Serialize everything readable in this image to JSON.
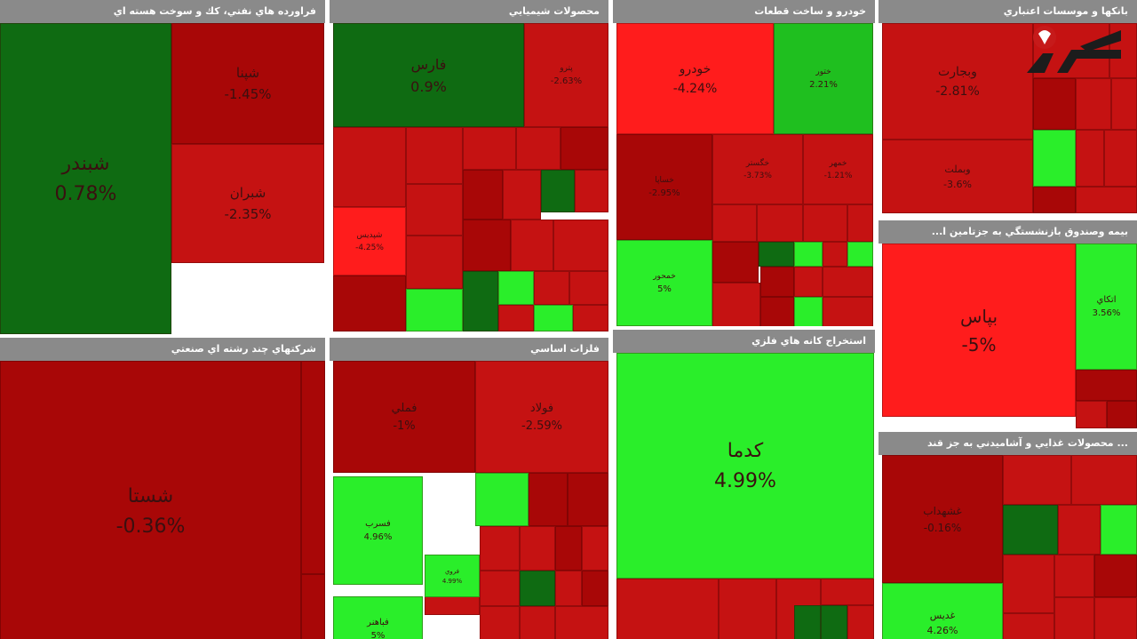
{
  "colors": {
    "dark_red": "#a80707",
    "red": "#c51212",
    "bright_red": "#ff1c1c",
    "dark_green": "#0f6b12",
    "green": "#1fbf1f",
    "bright_green": "#2aee2a"
  },
  "logo": {
    "icon": "rokna-logo-icon"
  },
  "chart_data": {
    "type": "heatmap",
    "panels": [
      {
        "title": "فراورده هاي نفتي، كك و سوخت هسته اي",
        "tiles": [
          {
            "label": "شبندر",
            "value": "0.78%",
            "color": "dark_green"
          },
          {
            "label": "شپنا",
            "value": "-1.45%",
            "color": "dark_red"
          },
          {
            "label": "شبران",
            "value": "-2.35%",
            "color": "red"
          }
        ]
      },
      {
        "title": "محصولات شيميايي",
        "tiles": [
          {
            "label": "فارس",
            "value": "0.9%",
            "color": "dark_green"
          },
          {
            "label": "پترو",
            "value": "-2.63%",
            "color": "red"
          },
          {
            "label": "شپديس",
            "value": "-4.25%",
            "color": "bright_red"
          }
        ]
      },
      {
        "title": "خودرو و ساخت قطعات",
        "tiles": [
          {
            "label": "خودرو",
            "value": "-4.24%",
            "color": "bright_red"
          },
          {
            "label": "ختور",
            "value": "2.21%",
            "color": "green"
          },
          {
            "label": "خساپا",
            "value": "-2.95%",
            "color": "dark_red"
          },
          {
            "label": "خگستر",
            "value": "-3.73%",
            "color": "red"
          },
          {
            "label": "خمهر",
            "value": "-1.21%",
            "color": "red"
          },
          {
            "label": "خمحور",
            "value": "5%",
            "color": "bright_green"
          }
        ]
      },
      {
        "title": "بانكها و موسسات اعتباري",
        "tiles": [
          {
            "label": "وبجارت",
            "value": "-2.81%",
            "color": "red"
          },
          {
            "label": "وبملت",
            "value": "-3.6%",
            "color": "red"
          }
        ]
      },
      {
        "title": "بيمه وصندوق بازنشستگي به جزتامين ا...",
        "tiles": [
          {
            "label": "بپاس",
            "value": "-5%",
            "color": "bright_red"
          },
          {
            "label": "اتكاي",
            "value": "3.56%",
            "color": "bright_green"
          }
        ]
      },
      {
        "title": "شركتهاي چند رشته اي صنعتي",
        "tiles": [
          {
            "label": "شستا",
            "value": "-0.36%",
            "color": "dark_red"
          }
        ]
      },
      {
        "title": "فلزات اساسي",
        "tiles": [
          {
            "label": "فملي",
            "value": "-1%",
            "color": "dark_red"
          },
          {
            "label": "فولاد",
            "value": "-2.59%",
            "color": "red"
          },
          {
            "label": "فسرب",
            "value": "4.96%",
            "color": "bright_green"
          },
          {
            "label": "فروي",
            "value": "4.99%",
            "color": "bright_green"
          },
          {
            "label": "فباهنر",
            "value": "5%",
            "color": "bright_green"
          }
        ]
      },
      {
        "title": "استخراج كانه هاي فلزي",
        "tiles": [
          {
            "label": "كدما",
            "value": "4.99%",
            "color": "bright_green"
          }
        ]
      },
      {
        "title": "... محصولات غذايي و آشاميدني به جز قند",
        "tiles": [
          {
            "label": "غشهداب",
            "value": "-0.16%",
            "color": "dark_red"
          },
          {
            "label": "غديس",
            "value": "4.26%",
            "color": "bright_green"
          }
        ]
      }
    ]
  }
}
